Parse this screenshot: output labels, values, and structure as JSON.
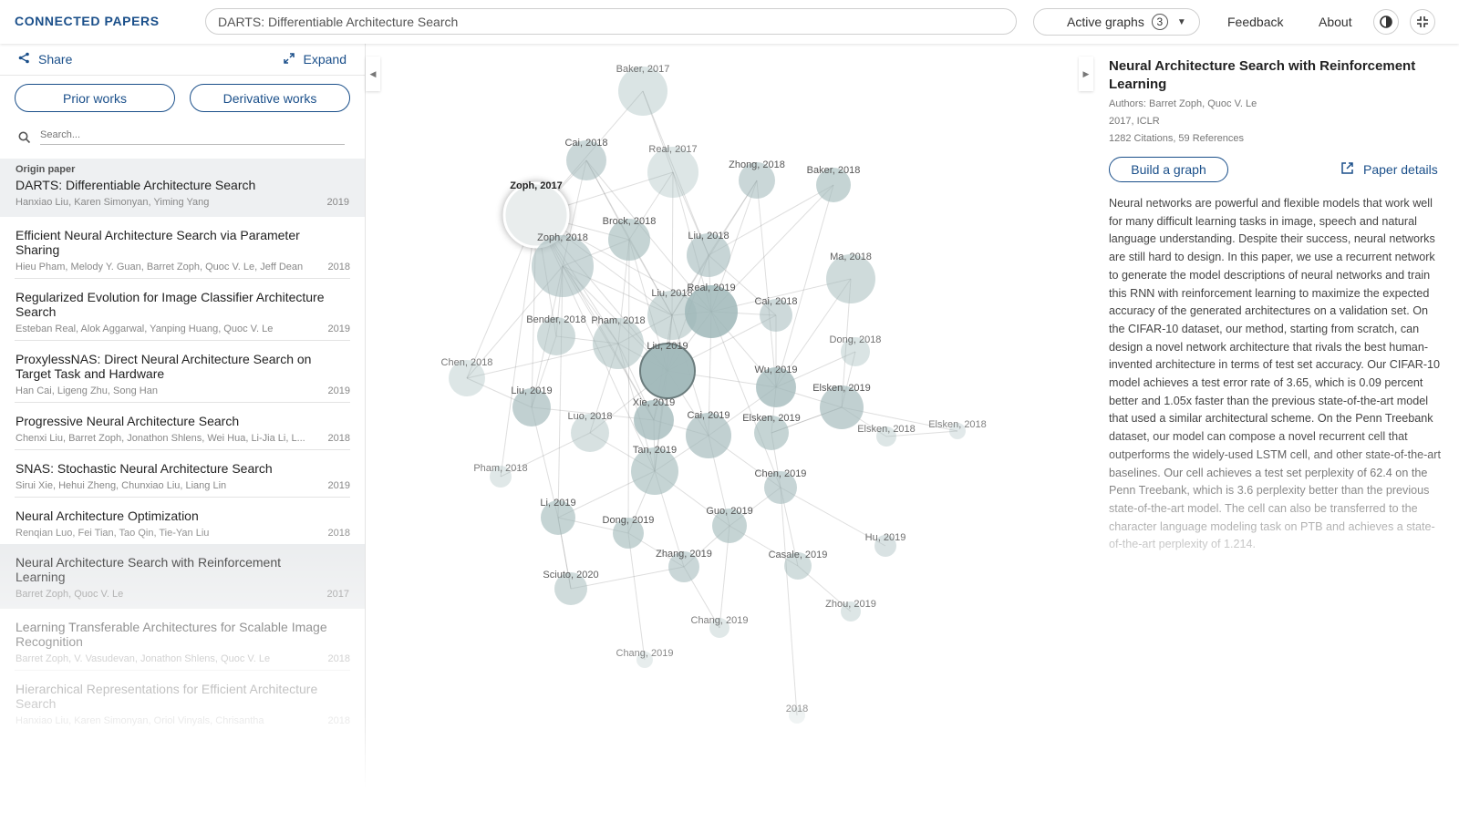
{
  "header": {
    "logo": "CONNECTED PAPERS",
    "search_value": "DARTS: Differentiable Architecture Search",
    "active_graphs_label": "Active graphs",
    "active_graphs_count": "3",
    "feedback": "Feedback",
    "about": "About",
    "icons": [
      "contrast-icon",
      "fullscreen-icon"
    ]
  },
  "left_panel": {
    "share": "Share",
    "expand": "Expand",
    "prior_works": "Prior works",
    "derivative_works": "Derivative works",
    "search_placeholder": "Search...",
    "origin_label": "Origin paper",
    "papers": [
      {
        "title": "DARTS: Differentiable Architecture Search",
        "authors": "Hanxiao Liu, Karen Simonyan, Yiming Yang",
        "year": "2019"
      },
      {
        "title": "Efficient Neural Architecture Search via Parameter Sharing",
        "authors": "Hieu Pham, Melody Y. Guan, Barret Zoph, Quoc V. Le, Jeff Dean",
        "year": "2018"
      },
      {
        "title": "Regularized Evolution for Image Classifier Architecture Search",
        "authors": "Esteban Real, Alok Aggarwal, Yanping Huang, Quoc V. Le",
        "year": "2019"
      },
      {
        "title": "ProxylessNAS: Direct Neural Architecture Search on Target Task and Hardware",
        "authors": "Han Cai, Ligeng Zhu, Song Han",
        "year": "2019"
      },
      {
        "title": "Progressive Neural Architecture Search",
        "authors": "Chenxi Liu, Barret Zoph, Jonathon Shlens, Wei Hua, Li-Jia Li, L...",
        "year": "2018"
      },
      {
        "title": "SNAS: Stochastic Neural Architecture Search",
        "authors": "Sirui Xie, Hehui Zheng, Chunxiao Liu, Liang Lin",
        "year": "2019"
      },
      {
        "title": "Neural Architecture Optimization",
        "authors": "Renqian Luo, Fei Tian, Tao Qin, Tie-Yan Liu",
        "year": "2018"
      },
      {
        "title": "Neural Architecture Search with Reinforcement Learning",
        "authors": "Barret Zoph, Quoc V. Le",
        "year": "2017"
      },
      {
        "title": "Learning Transferable Architectures for Scalable Image Recognition",
        "authors": "Barret Zoph, V. Vasudevan, Jonathon Shlens, Quoc V. Le",
        "year": "2018"
      },
      {
        "title": "Hierarchical Representations for Efficient Architecture Search",
        "authors": "Hanxiao Liu, Karen Simonyan, Oriol Vinyals, Chrisantha",
        "year": "2018"
      }
    ]
  },
  "graph": {
    "nodes": [
      {
        "label": "Baker, 2017"
      },
      {
        "label": "Cai, 2018"
      },
      {
        "label": "Real, 2017"
      },
      {
        "label": "Zhong, 2018"
      },
      {
        "label": "Baker, 2018"
      },
      {
        "label": "Zoph, 2017"
      },
      {
        "label": "Brock, 2018"
      },
      {
        "label": "Liu, 2018"
      },
      {
        "label": "Zoph, 2018"
      },
      {
        "label": "Ma, 2018"
      },
      {
        "label": "Liu, 2018"
      },
      {
        "label": "Real, 2019"
      },
      {
        "label": "Cai, 2018"
      },
      {
        "label": "Bender, 2018"
      },
      {
        "label": "Pham, 2018"
      },
      {
        "label": "Dong, 2018"
      },
      {
        "label": "Chen, 2018"
      },
      {
        "label": "Liu, 2019"
      },
      {
        "label": "Wu, 2019"
      },
      {
        "label": "Liu, 2019"
      },
      {
        "label": "Elsken, 2019"
      },
      {
        "label": "Xie, 2019"
      },
      {
        "label": "Luo, 2018"
      },
      {
        "label": "Cai, 2019"
      },
      {
        "label": "Elsken, 2019"
      },
      {
        "label": "Elsken, 2018"
      },
      {
        "label": "Elsken, 2018"
      },
      {
        "label": "Tan, 2019"
      },
      {
        "label": "Pham, 2018"
      },
      {
        "label": "Chen, 2019"
      },
      {
        "label": "Li, 2019"
      },
      {
        "label": "Dong, 2019"
      },
      {
        "label": "Guo, 2019"
      },
      {
        "label": "Hu, 2019"
      },
      {
        "label": "Zhang, 2019"
      },
      {
        "label": "Casale, 2019"
      },
      {
        "label": "Sciuto, 2020"
      },
      {
        "label": "Zhou, 2019"
      },
      {
        "label": "Chang, 2019"
      },
      {
        "label": "Chang, 2019"
      },
      {
        "label": "2018"
      }
    ]
  },
  "right_panel": {
    "title": "Neural Architecture Search with Reinforcement Learning",
    "authors": "Authors: Barret Zoph, Quoc V. Le",
    "venue": "2017, ICLR",
    "citations": "1282 Citations, 59 References",
    "build_graph": "Build a graph",
    "paper_details": "Paper details",
    "abstract": "Neural networks are powerful and flexible models that work well for many difficult learning tasks in image, speech and natural language understanding. Despite their success, neural networks are still hard to design. In this paper, we use a recurrent network to generate the model descriptions of neural networks and train this RNN with reinforcement learning to maximize the expected accuracy of the generated architectures on a validation set. On the CIFAR-10 dataset, our method, starting from scratch, can design a novel network architecture that rivals the best human-invented architecture in terms of test set accuracy. Our CIFAR-10 model achieves a test error rate of 3.65, which is 0.09 percent better and 1.05x faster than the previous state-of-the-art model that used a similar architectural scheme. On the Penn Treebank dataset, our model can compose a novel recurrent cell that outperforms the widely-used LSTM cell, and other state-of-the-art baselines. Our cell achieves a test set perplexity of 62.4 on the Penn Treebank, which is 3.6 perplexity better than the previous state-of-the-art model. The cell can also be transferred to the character language modeling task on PTB and achieves a state-of-the-art perplexity of 1.214."
  },
  "colors": {
    "brand": "#1a4f8a",
    "node_fill": "#9fb7b8",
    "edge": "#888888"
  }
}
